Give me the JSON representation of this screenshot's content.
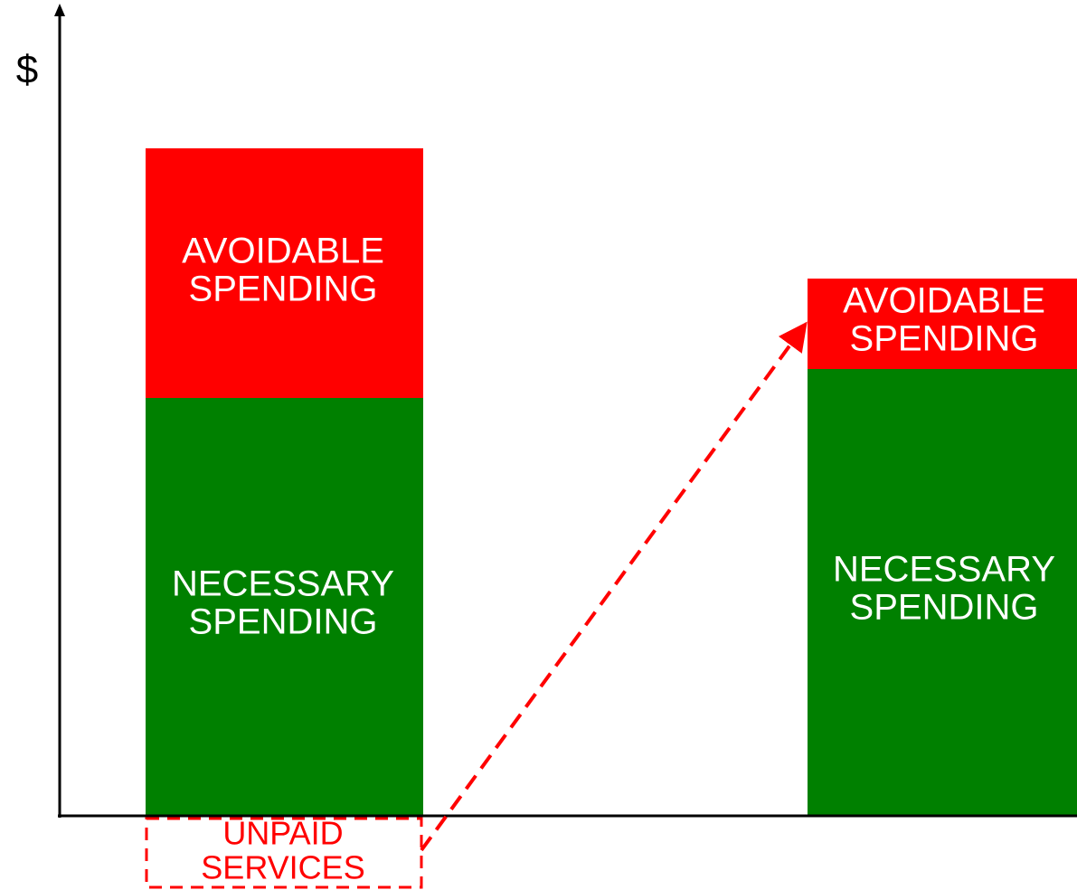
{
  "y_axis_label": "$",
  "bars": [
    {
      "segments": [
        {
          "lines": [
            "AVOIDABLE",
            "SPENDING"
          ]
        },
        {
          "lines": [
            "NECESSARY",
            "SPENDING"
          ]
        }
      ]
    },
    {
      "segments": [
        {
          "lines": [
            "AVOIDABLE",
            "SPENDING"
          ]
        },
        {
          "lines": [
            "NECESSARY",
            "SPENDING"
          ]
        }
      ]
    }
  ],
  "unpaid_box": {
    "lines": [
      "UNPAID",
      "SERVICES"
    ]
  }
}
